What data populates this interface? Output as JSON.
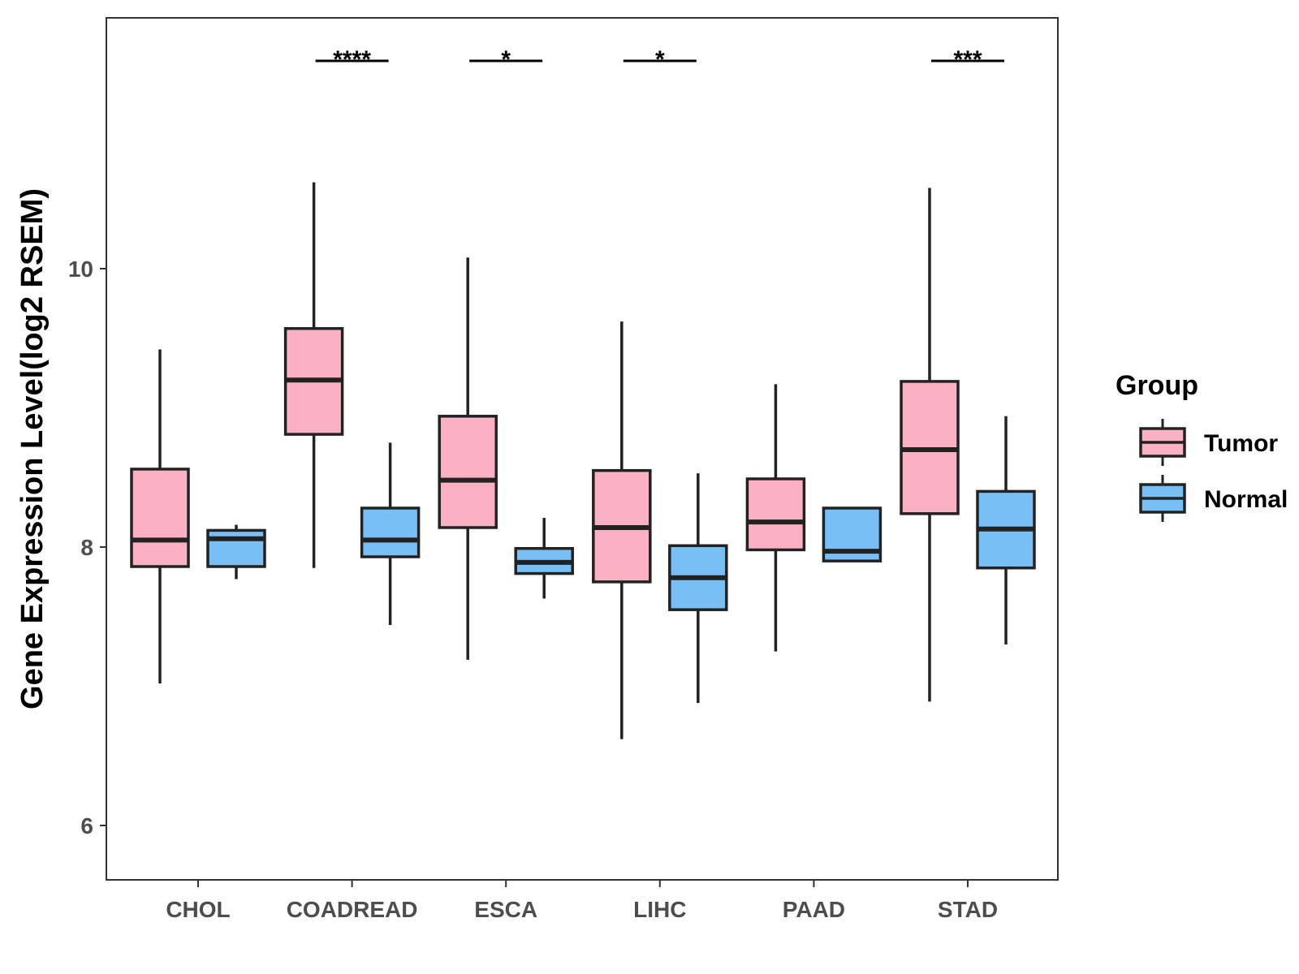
{
  "chart_data": {
    "type": "boxplot",
    "ylabel": "Gene Expression Level(log2 RSEM)",
    "xlabel": "",
    "ylim": [
      5.6,
      11.8
    ],
    "yticks": [
      6,
      8,
      10
    ],
    "grid": false,
    "legend": {
      "title": "Group",
      "placement": "right",
      "entries": [
        {
          "name": "Tumor",
          "color": "#fbb1c3"
        },
        {
          "name": "Normal",
          "color": "#78bff6"
        }
      ]
    },
    "categories": [
      "CHOL",
      "COADREAD",
      "ESCA",
      "LIHC",
      "PAAD",
      "STAD"
    ],
    "series": [
      {
        "name": "Tumor",
        "color": "#fbb1c3",
        "boxes": [
          {
            "min": 7.02,
            "q1": 7.86,
            "median": 8.05,
            "q3": 8.56,
            "max": 9.42
          },
          {
            "min": 7.85,
            "q1": 8.81,
            "median": 9.2,
            "q3": 9.57,
            "max": 10.62
          },
          {
            "min": 7.19,
            "q1": 8.14,
            "median": 8.48,
            "q3": 8.94,
            "max": 10.08
          },
          {
            "min": 6.62,
            "q1": 7.75,
            "median": 8.14,
            "q3": 8.55,
            "max": 9.62
          },
          {
            "min": 7.25,
            "q1": 7.98,
            "median": 8.18,
            "q3": 8.49,
            "max": 9.17
          },
          {
            "min": 6.89,
            "q1": 8.24,
            "median": 8.7,
            "q3": 9.19,
            "max": 10.58
          }
        ]
      },
      {
        "name": "Normal",
        "color": "#78bff6",
        "boxes": [
          {
            "min": 7.77,
            "q1": 7.86,
            "median": 8.06,
            "q3": 8.12,
            "max": 8.16
          },
          {
            "min": 7.44,
            "q1": 7.93,
            "median": 8.05,
            "q3": 8.28,
            "max": 8.75
          },
          {
            "min": 7.63,
            "q1": 7.81,
            "median": 7.89,
            "q3": 7.99,
            "max": 8.21
          },
          {
            "min": 6.88,
            "q1": 7.55,
            "median": 7.78,
            "q3": 8.01,
            "max": 8.53
          },
          {
            "min": 7.9,
            "q1": 7.9,
            "median": 7.97,
            "q3": 8.28,
            "max": 8.28
          },
          {
            "min": 7.3,
            "q1": 7.85,
            "median": 8.13,
            "q3": 8.4,
            "max": 8.94
          }
        ]
      }
    ],
    "annotations": [
      {
        "category": "COADREAD",
        "label": "****"
      },
      {
        "category": "ESCA",
        "label": "*"
      },
      {
        "category": "LIHC",
        "label": "*"
      },
      {
        "category": "STAD",
        "label": "***"
      }
    ]
  }
}
